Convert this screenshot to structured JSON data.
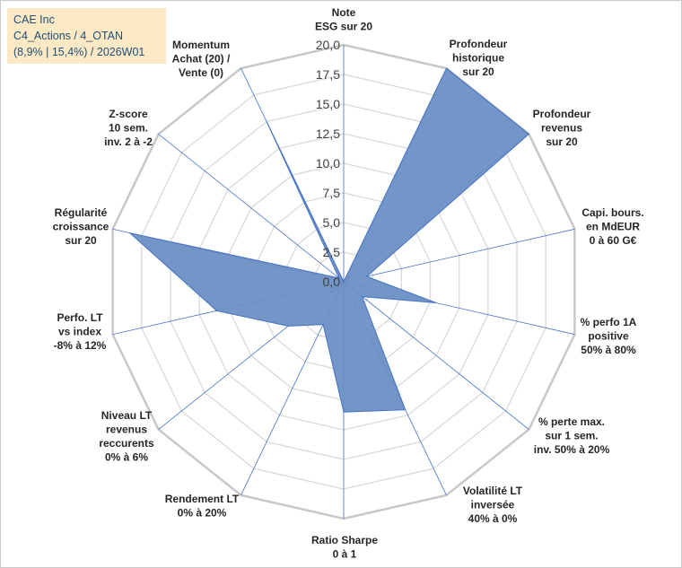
{
  "header": {
    "line1": "CAE Inc",
    "line2": "C4_Actions / 4_OTAN",
    "line3": "(8,9% | 15,4%) / 2026W01"
  },
  "chart_data": {
    "type": "radar",
    "title": "CAE Inc",
    "rmin": 0,
    "rmax": 20,
    "tick_labels": [
      "0,0",
      "2,5",
      "5,0",
      "7,5",
      "10,0",
      "12,5",
      "15,0",
      "17,5",
      "20,0"
    ],
    "ticks": [
      0,
      2.5,
      5,
      7.5,
      10,
      12.5,
      15,
      17.5,
      20
    ],
    "grid_count": 8,
    "colors": {
      "fill": "#6b8fc4",
      "stroke": "#4472c4",
      "grid": "#d9d9d9",
      "spokes": "#4472c4",
      "text": "#262626",
      "title": "#1f4e79",
      "title_bg": "#fde9c4"
    },
    "axes": [
      {
        "label": [
          "Note",
          "ESG sur 20"
        ],
        "value": 0
      },
      {
        "label": [
          "Profondeur",
          "historique",
          "sur 20"
        ],
        "value": 20
      },
      {
        "label": [
          "Profondeur",
          "revenus",
          "sur 20"
        ],
        "value": 20
      },
      {
        "label": [
          "Capi. bours.",
          "en MdEUR",
          "0 à 60 G€"
        ],
        "value": 2
      },
      {
        "label": [
          "% perfo 1A",
          "positive",
          "50% à 80%"
        ],
        "value": 8
      },
      {
        "label": [
          "% perte max.",
          "sur 1 sem.",
          "inv. 50% à 20%"
        ],
        "value": 2
      },
      {
        "label": [
          "Volatilité LT",
          "inversée",
          "40% à 0%"
        ],
        "value": 12
      },
      {
        "label": [
          "Ratio Sharpe",
          "0 à 1"
        ],
        "value": 11
      },
      {
        "label": [
          "Rendement LT",
          "0% à 20%"
        ],
        "value": 4
      },
      {
        "label": [
          "Niveau LT",
          "revenus",
          "reccurents",
          "0% à 6%"
        ],
        "value": 6
      },
      {
        "label": [
          "Perfo. LT",
          "vs index",
          "-8% à 12%"
        ],
        "value": 11
      },
      {
        "label": [
          "Régularité",
          "croissance",
          "sur 20"
        ],
        "value": 18.5
      },
      {
        "label": [
          "Z-score",
          "10 sem.",
          "inv. 2 à -2"
        ],
        "value": 0.5
      },
      {
        "label": [
          "Momentum",
          "Achat (20) /",
          "Vente (0)"
        ],
        "value": 15
      }
    ]
  }
}
